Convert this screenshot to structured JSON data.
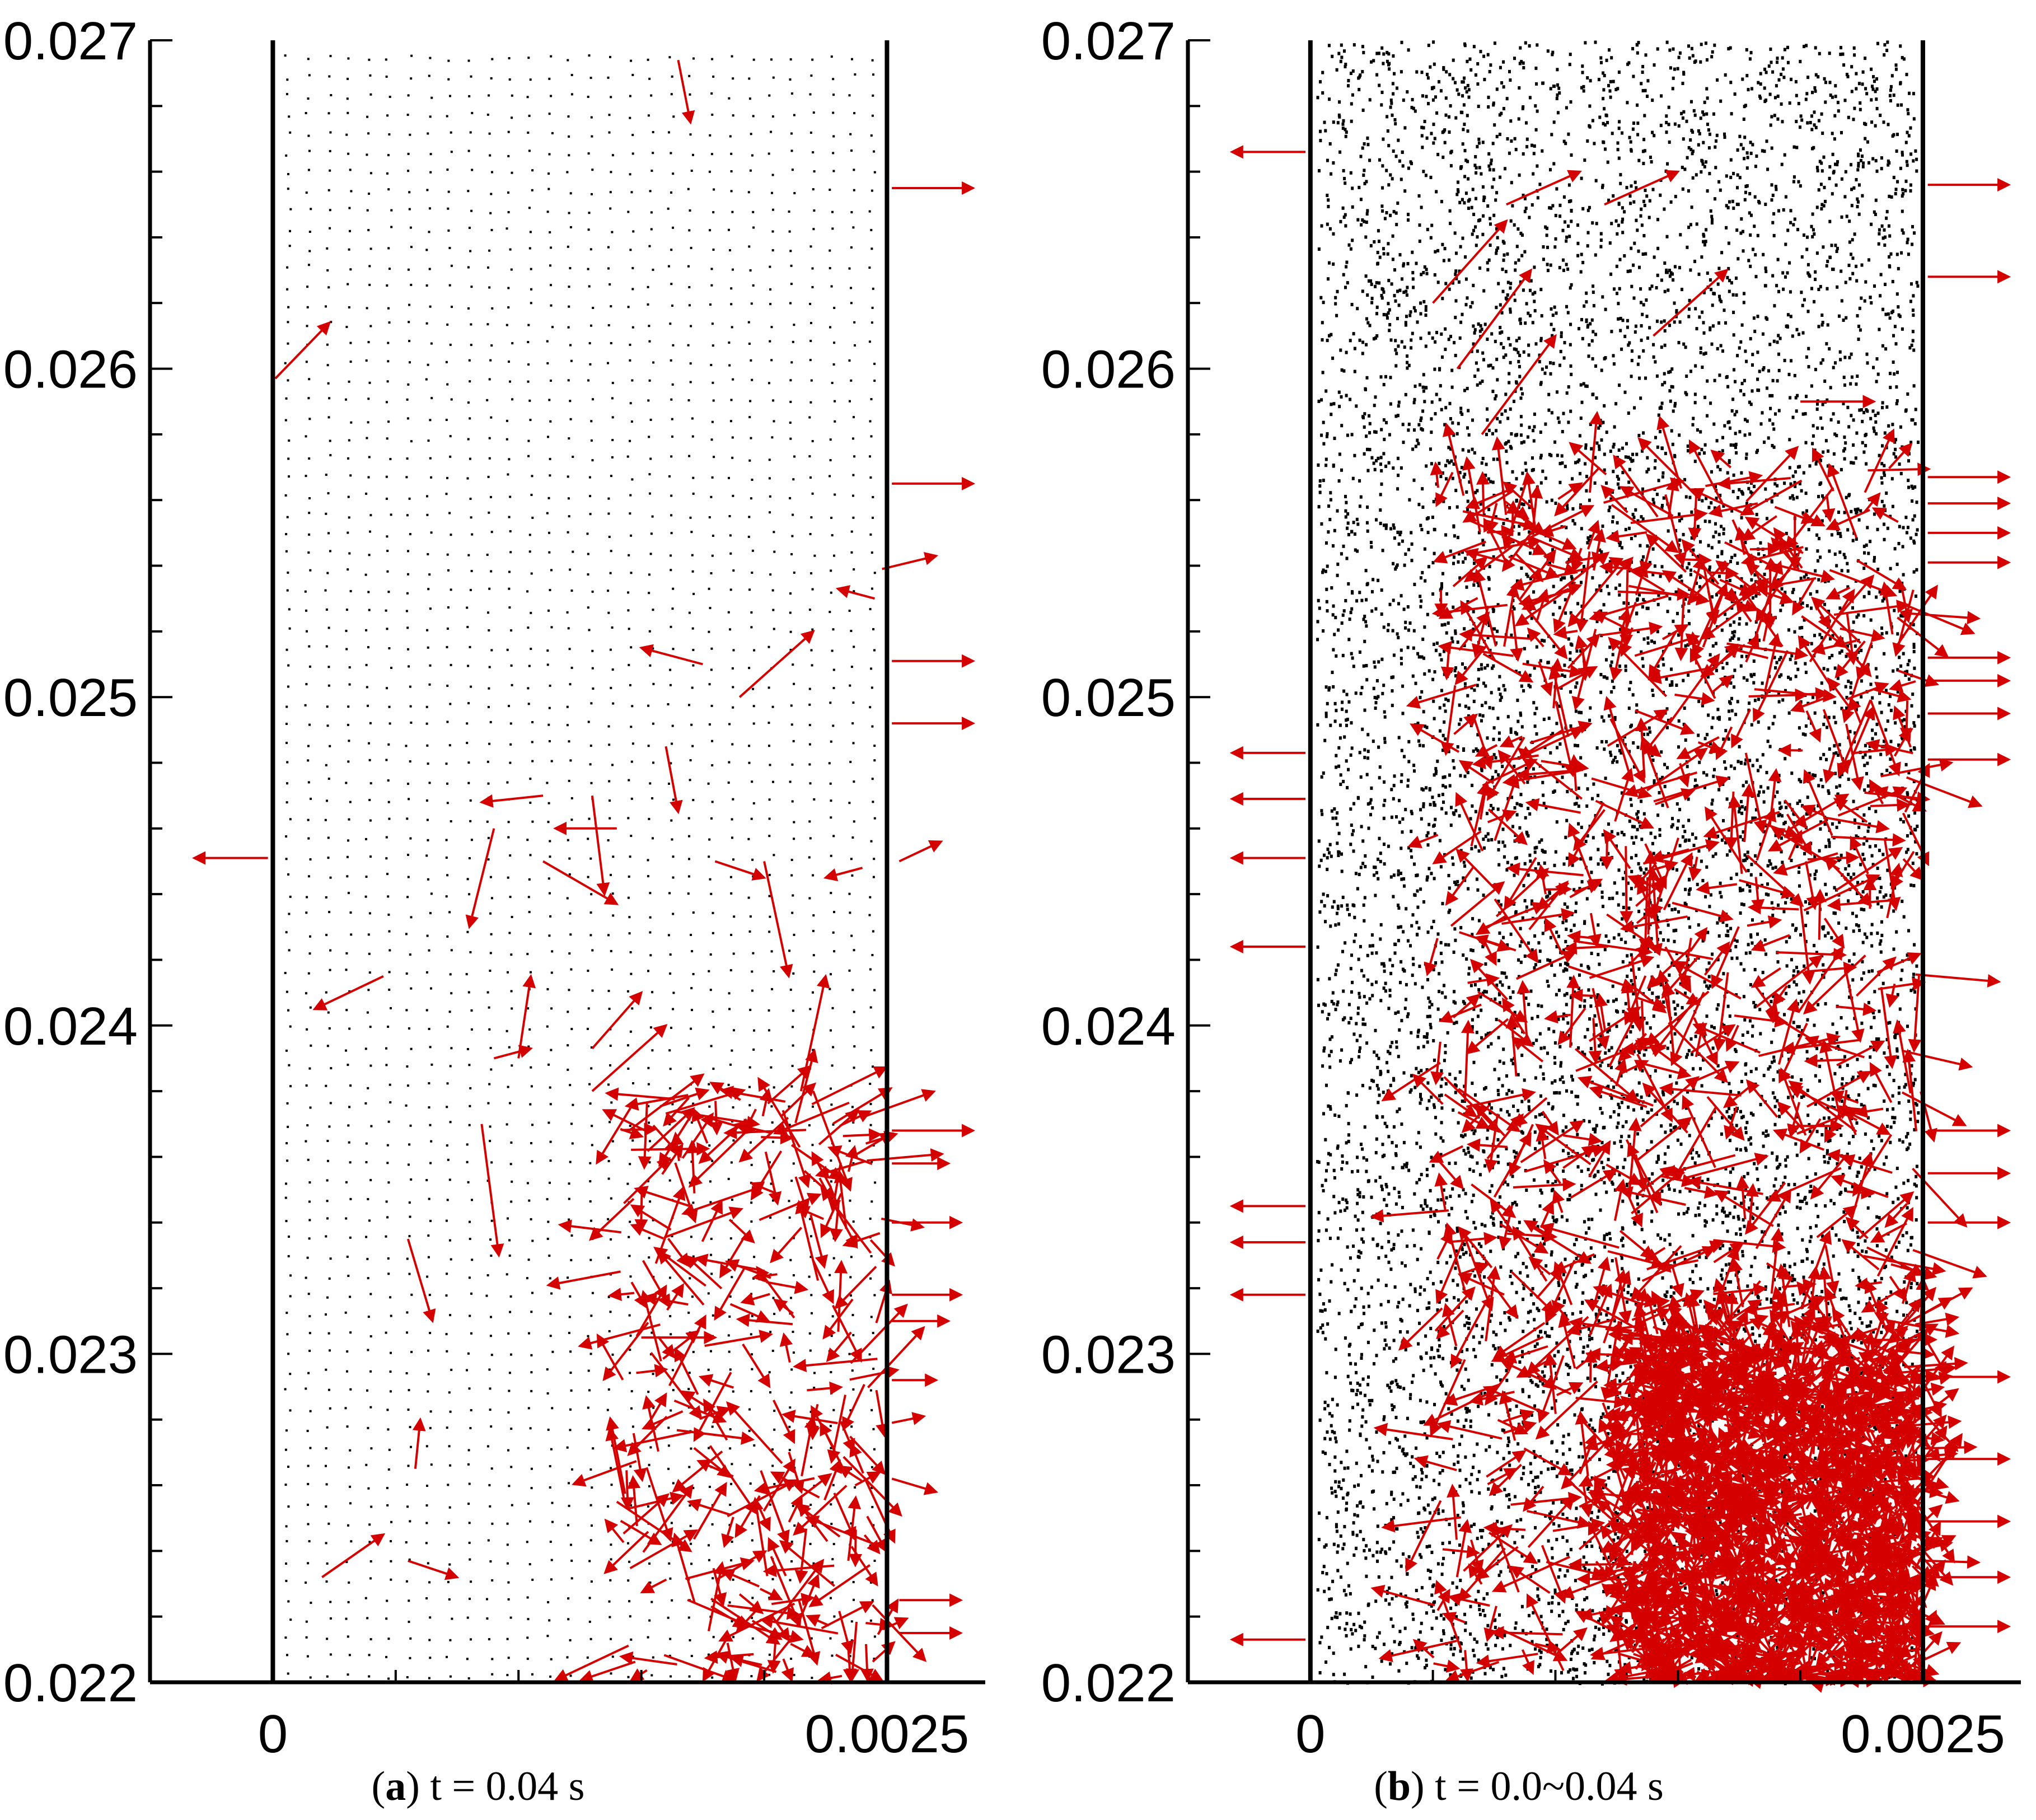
{
  "figure": {
    "panels": [
      {
        "id": "a",
        "caption": {
          "letter": "a",
          "text": "t = 0.04 s"
        }
      },
      {
        "id": "b",
        "caption": {
          "letter": "b",
          "text": "t = 0.0~0.04 s"
        }
      }
    ]
  },
  "colors": {
    "arrow": "#d40000",
    "dot": "#000000",
    "axis": "#000000",
    "background": "#ffffff"
  },
  "chart_data": [
    {
      "type": "scatter",
      "title": "",
      "xlabel": "",
      "ylabel": "",
      "xlim": [
        -0.0005,
        0.0029
      ],
      "ylim": [
        0.022,
        0.027
      ],
      "xticks": [
        0,
        0.0025
      ],
      "xtick_labels": [
        "0",
        "0.0025"
      ],
      "yticks": [
        0.022,
        0.023,
        0.024,
        0.025,
        0.026,
        0.027
      ],
      "ytick_labels": [
        "0.022",
        "0.023",
        "0.024",
        "0.025",
        "0.026",
        "0.027"
      ],
      "domain_walls_x": [
        0,
        0.0025
      ],
      "particle_density": "sparse",
      "vectors": [
        [
          0.00165,
          0.02694,
          0.0017,
          0.02675
        ],
        [
          0.00252,
          0.02655,
          0.00285,
          0.02655
        ],
        [
          1e-05,
          0.02597,
          0.00023,
          0.02614
        ],
        [
          0.00252,
          0.02565,
          0.00285,
          0.02565
        ],
        [
          0.00248,
          0.02539,
          0.0027,
          0.02543
        ],
        [
          0.00245,
          0.0253,
          0.0023,
          0.02533
        ],
        [
          0.00252,
          0.02511,
          0.00285,
          0.02511
        ],
        [
          0.00252,
          0.02492,
          0.00285,
          0.02492
        ],
        [
          0.0019,
          0.025,
          0.0022,
          0.0252
        ],
        [
          0.00175,
          0.0251,
          0.0015,
          0.02515
        ],
        [
          0.0016,
          0.02485,
          0.00165,
          0.02465
        ],
        [
          -2e-05,
          0.02451,
          -0.00032,
          0.02451
        ],
        [
          0.0011,
          0.0247,
          0.00085,
          0.02468
        ],
        [
          0.0014,
          0.0246,
          0.00115,
          0.0246
        ],
        [
          0.0013,
          0.0247,
          0.00135,
          0.0244
        ],
        [
          0.0009,
          0.0246,
          0.0008,
          0.0243
        ],
        [
          0.0011,
          0.0245,
          0.0014,
          0.02437
        ],
        [
          0.0018,
          0.0245,
          0.002,
          0.02445
        ],
        [
          0.002,
          0.0245,
          0.0021,
          0.02415
        ],
        [
          0.0024,
          0.02448,
          0.00225,
          0.02445
        ],
        [
          0.00255,
          0.0245,
          0.00272,
          0.02456
        ],
        [
          0.00045,
          0.02415,
          0.00017,
          0.02405
        ],
        [
          0.001,
          0.0239,
          0.00105,
          0.02415
        ],
        [
          0.0013,
          0.02393,
          0.0015,
          0.0241
        ],
        [
          0.00145,
          0.02368,
          0.00175,
          0.02385
        ],
        [
          0.0009,
          0.0239,
          0.00105,
          0.02393
        ],
        [
          0.00085,
          0.0237,
          0.00092,
          0.0233
        ],
        [
          0.0013,
          0.0238,
          0.0016,
          0.024
        ],
        [
          0.00215,
          0.0238,
          0.00225,
          0.02415
        ],
        [
          0.0022,
          0.0238,
          0.00235,
          0.0235
        ],
        [
          0.00252,
          0.02368,
          0.00285,
          0.02368
        ],
        [
          0.00252,
          0.02358,
          0.00275,
          0.02358
        ],
        [
          0.00252,
          0.0234,
          0.0028,
          0.0234
        ],
        [
          0.00252,
          0.02318,
          0.0028,
          0.02318
        ],
        [
          0.00252,
          0.0231,
          0.00275,
          0.0231
        ],
        [
          0.00252,
          0.02292,
          0.0027,
          0.02292
        ],
        [
          0.00252,
          0.02279,
          0.00265,
          0.02281
        ],
        [
          0.00252,
          0.02262,
          0.0027,
          0.02258
        ],
        [
          0.00255,
          0.02225,
          0.0028,
          0.02225
        ],
        [
          0.00255,
          0.02215,
          0.0028,
          0.02215
        ],
        [
          0.00055,
          0.02335,
          0.00065,
          0.0231
        ],
        [
          0.00058,
          0.02265,
          0.0006,
          0.0228
        ],
        [
          0.0002,
          0.02232,
          0.00045,
          0.02245
        ],
        [
          0.00055,
          0.02237,
          0.00075,
          0.02232
        ],
        [
          0.0015,
          0.02305,
          0.0018,
          0.02305
        ],
        [
          0.0014,
          0.02255,
          0.0017,
          0.0224
        ]
      ],
      "dense_cluster": {
        "x_range": [
          0.0014,
          0.0025
        ],
        "y_range": [
          0.022,
          0.0238
        ],
        "count": 260
      }
    },
    {
      "type": "scatter",
      "title": "",
      "xlabel": "",
      "ylabel": "",
      "xlim": [
        -0.0005,
        0.0029
      ],
      "ylim": [
        0.022,
        0.027
      ],
      "xticks": [
        0,
        0.0025
      ],
      "xtick_labels": [
        "0",
        "0.0025"
      ],
      "yticks": [
        0.022,
        0.023,
        0.024,
        0.025,
        0.026,
        0.027
      ],
      "ytick_labels": [
        "0.022",
        "0.023",
        "0.024",
        "0.025",
        "0.026",
        "0.027"
      ],
      "domain_walls_x": [
        0,
        0.0025
      ],
      "particle_density": "dense",
      "vectors": [
        [
          -2e-05,
          0.02666,
          -0.00032,
          0.02666
        ],
        [
          -2e-05,
          0.02483,
          -0.00032,
          0.02483
        ],
        [
          -2e-05,
          0.02469,
          -0.00032,
          0.02469
        ],
        [
          -2e-05,
          0.02451,
          -0.00032,
          0.02451
        ],
        [
          -2e-05,
          0.02424,
          -0.00032,
          0.02424
        ],
        [
          -2e-05,
          0.02345,
          -0.00032,
          0.02345
        ],
        [
          -2e-05,
          0.02334,
          -0.00032,
          0.02334
        ],
        [
          -2e-05,
          0.02318,
          -0.00032,
          0.02318
        ],
        [
          -2e-05,
          0.02213,
          -0.00032,
          0.02213
        ],
        [
          0.00252,
          0.02656,
          0.00285,
          0.02656
        ],
        [
          0.00252,
          0.02628,
          0.00285,
          0.02628
        ],
        [
          0.00252,
          0.02567,
          0.00285,
          0.02567
        ],
        [
          0.00252,
          0.02559,
          0.00285,
          0.02559
        ],
        [
          0.00252,
          0.0255,
          0.00285,
          0.0255
        ],
        [
          0.00252,
          0.02541,
          0.00285,
          0.02541
        ],
        [
          0.00252,
          0.02512,
          0.00285,
          0.02512
        ],
        [
          0.00252,
          0.02505,
          0.00285,
          0.02505
        ],
        [
          0.00252,
          0.02495,
          0.00285,
          0.02495
        ],
        [
          0.00252,
          0.02481,
          0.00285,
          0.02481
        ],
        [
          0.00252,
          0.02368,
          0.00285,
          0.02368
        ],
        [
          0.00252,
          0.02355,
          0.00285,
          0.02355
        ],
        [
          0.00252,
          0.0234,
          0.00285,
          0.0234
        ],
        [
          0.00252,
          0.02293,
          0.00285,
          0.02293
        ],
        [
          0.00252,
          0.02268,
          0.00285,
          0.02268
        ],
        [
          0.00252,
          0.02249,
          0.00285,
          0.02249
        ],
        [
          0.00252,
          0.02232,
          0.00285,
          0.02232
        ],
        [
          0.00252,
          0.02217,
          0.00285,
          0.02217
        ],
        [
          0.0005,
          0.0262,
          0.0008,
          0.02645
        ],
        [
          0.0006,
          0.026,
          0.0009,
          0.0263
        ],
        [
          0.0007,
          0.0258,
          0.001,
          0.0261
        ],
        [
          0.0008,
          0.0265,
          0.0011,
          0.0266
        ],
        [
          0.0012,
          0.0265,
          0.0015,
          0.0266
        ],
        [
          0.0014,
          0.0261,
          0.0017,
          0.0263
        ],
        [
          0.002,
          0.0259,
          0.0023,
          0.0259
        ]
      ],
      "dense_cluster": {
        "x_range": [
          0.0005,
          0.0025
        ],
        "y_range": [
          0.022,
          0.0257
        ],
        "count": 900
      },
      "core_cluster": {
        "x_range": [
          0.0013,
          0.0025
        ],
        "y_range": [
          0.022,
          0.0231
        ],
        "count": 1400
      }
    }
  ]
}
